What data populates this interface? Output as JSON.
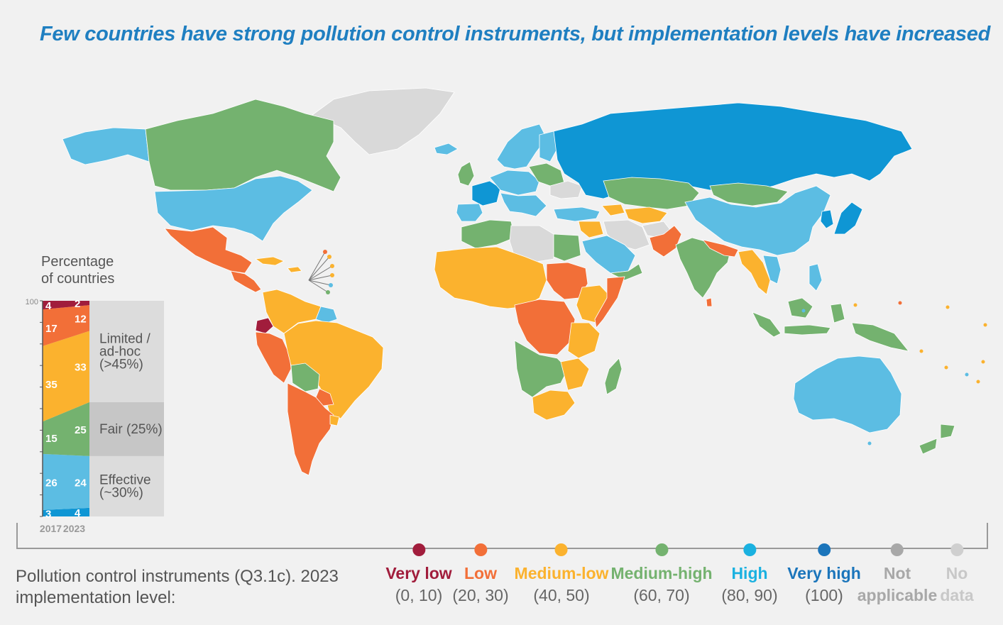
{
  "title": "Few countries have strong pollution control instruments, but implementation levels have increased",
  "colors": {
    "very_low": "#a11d3c",
    "low": "#f26f38",
    "medium_low": "#fbb22e",
    "medium_high": "#74b26f",
    "high": "#5cbde3",
    "very_high": "#0f96d4",
    "not_applicable": "#a8a8a8",
    "no_data": "#cfcfcf",
    "map_no_data": "#d9d9d9"
  },
  "stack": {
    "label_line1": "Percentage",
    "label_line2": "of countries",
    "axis_top": "100",
    "years": [
      "2017",
      "2023"
    ],
    "segments": [
      {
        "key": "very_high",
        "v2017": 3,
        "v2023": 4
      },
      {
        "key": "high",
        "v2017": 26,
        "v2023": 24
      },
      {
        "key": "medium_high",
        "v2017": 15,
        "v2023": 25
      },
      {
        "key": "medium_low",
        "v2017": 35,
        "v2023": 33
      },
      {
        "key": "low",
        "v2017": 17,
        "v2023": 12
      },
      {
        "key": "very_low",
        "v2017": 4,
        "v2023": 2
      }
    ],
    "groups": [
      {
        "label_line1": "Effective",
        "label_line2": "(~30%)",
        "from": 0,
        "to": 28,
        "fill": "#dcdcdc"
      },
      {
        "label_line1": "Fair (25%)",
        "label_line2": "",
        "from": 28,
        "to": 53,
        "fill": "#c6c6c6"
      },
      {
        "label_line1": "Limited /",
        "label_line2": "ad-hoc",
        "label_line3": "(>45%)",
        "from": 53,
        "to": 100,
        "fill": "#dcdcdc"
      }
    ]
  },
  "legend": {
    "caption_line1": "Pollution control instruments (Q3.1c). 2023",
    "caption_line2": "implementation level:",
    "items": [
      {
        "name": "Very low",
        "range": "(0, 10)",
        "dot": "#a11d3c",
        "text_color": "#a11d3c"
      },
      {
        "name": "Low",
        "range": "(20, 30)",
        "dot": "#f26f38",
        "text_color": "#f26f38"
      },
      {
        "name": "Medium-low",
        "range": "(40, 50)",
        "dot": "#fbb22e",
        "text_color": "#fbb22e"
      },
      {
        "name": "Medium-high",
        "range": "(60, 70)",
        "dot": "#74b26f",
        "text_color": "#74b26f"
      },
      {
        "name": "High",
        "range": "(80, 90)",
        "dot": "#1ab1e0",
        "text_color": "#1ab1e0"
      },
      {
        "name": "Very high",
        "range": "(100)",
        "dot": "#1b75bb",
        "text_color": "#1b75bb"
      },
      {
        "name": "Not",
        "name2": "applicable",
        "range": "",
        "dot": "#a8a8a8",
        "text_color": "#a8a8a8"
      },
      {
        "name": "No",
        "name2": "data",
        "range": "",
        "dot": "#cfcfcf",
        "text_color": "#c8c8c8"
      }
    ]
  },
  "map_regions": [
    {
      "name": "alaska",
      "level": "high"
    },
    {
      "name": "canada",
      "level": "medium_high"
    },
    {
      "name": "greenland",
      "level": "no_data"
    },
    {
      "name": "usa",
      "level": "high"
    },
    {
      "name": "mexico",
      "level": "low"
    },
    {
      "name": "central-america",
      "level": "low"
    },
    {
      "name": "caribbean",
      "level": "medium_low"
    },
    {
      "name": "colombia-venezuela",
      "level": "medium_low"
    },
    {
      "name": "ecuador",
      "level": "very_low"
    },
    {
      "name": "peru",
      "level": "low"
    },
    {
      "name": "brazil",
      "level": "medium_low"
    },
    {
      "name": "bolivia",
      "level": "medium_high"
    },
    {
      "name": "paraguay",
      "level": "low"
    },
    {
      "name": "chile-argentina",
      "level": "low"
    },
    {
      "name": "uruguay",
      "level": "medium_low"
    },
    {
      "name": "guianas",
      "level": "high"
    },
    {
      "name": "iceland",
      "level": "high"
    },
    {
      "name": "uk-ireland",
      "level": "medium_high"
    },
    {
      "name": "scandinavia",
      "level": "high"
    },
    {
      "name": "finland",
      "level": "high"
    },
    {
      "name": "france",
      "level": "very_high"
    },
    {
      "name": "iberia",
      "level": "high"
    },
    {
      "name": "central-europe",
      "level": "high"
    },
    {
      "name": "eastern-europe",
      "level": "medium_high"
    },
    {
      "name": "ukraine-region",
      "level": "no_data"
    },
    {
      "name": "italy-balkans",
      "level": "high"
    },
    {
      "name": "russia",
      "level": "very_high"
    },
    {
      "name": "kazakhstan",
      "level": "medium_high"
    },
    {
      "name": "mongolia",
      "level": "medium_high"
    },
    {
      "name": "china",
      "level": "high"
    },
    {
      "name": "korea",
      "level": "very_high"
    },
    {
      "name": "japan",
      "level": "very_high"
    },
    {
      "name": "turkey",
      "level": "high"
    },
    {
      "name": "caucasus",
      "level": "medium_low"
    },
    {
      "name": "iran",
      "level": "no_data"
    },
    {
      "name": "central-asia",
      "level": "medium_low"
    },
    {
      "name": "afghanistan",
      "level": "no_data"
    },
    {
      "name": "pakistan",
      "level": "low"
    },
    {
      "name": "india",
      "level": "medium_high"
    },
    {
      "name": "nepal-bangladesh",
      "level": "low"
    },
    {
      "name": "myanmar-thailand",
      "level": "medium_low"
    },
    {
      "name": "indochina",
      "level": "high"
    },
    {
      "name": "saudi-arabia",
      "level": "high"
    },
    {
      "name": "levant-iraq",
      "level": "medium_low"
    },
    {
      "name": "yemen-oman",
      "level": "medium_high"
    },
    {
      "name": "indonesia",
      "level": "medium_high"
    },
    {
      "name": "philippines",
      "level": "high"
    },
    {
      "name": "papua",
      "level": "medium_high"
    },
    {
      "name": "australia",
      "level": "high"
    },
    {
      "name": "new-zealand",
      "level": "medium_high"
    },
    {
      "name": "madagascar",
      "level": "medium_high"
    },
    {
      "name": "sri-lanka",
      "level": "low"
    },
    {
      "name": "north-africa-west",
      "level": "medium_high"
    },
    {
      "name": "sahara-nodata",
      "level": "no_data"
    },
    {
      "name": "egypt",
      "level": "medium_high"
    },
    {
      "name": "west-africa",
      "level": "medium_low"
    },
    {
      "name": "sudan",
      "level": "low"
    },
    {
      "name": "horn-of-africa",
      "level": "medium_low"
    },
    {
      "name": "somalia",
      "level": "low"
    },
    {
      "name": "central-africa",
      "level": "low"
    },
    {
      "name": "east-africa",
      "level": "medium_low"
    },
    {
      "name": "southern-africa-west",
      "level": "medium_high"
    },
    {
      "name": "southern-africa-east",
      "level": "medium_low"
    },
    {
      "name": "south-africa",
      "level": "medium_low"
    }
  ]
}
